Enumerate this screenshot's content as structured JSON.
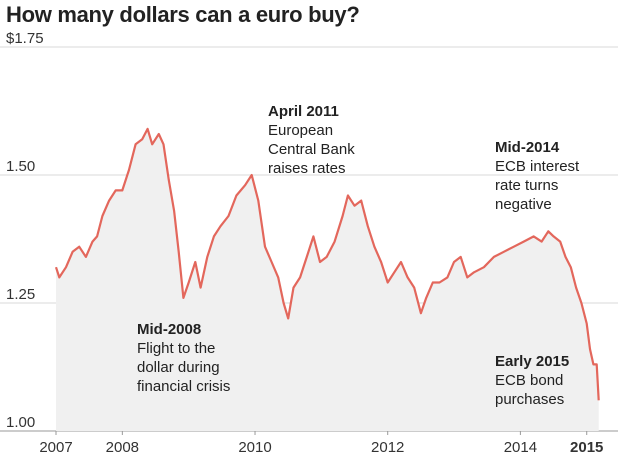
{
  "title": "How many dollars can a euro buy?",
  "chart_data": {
    "type": "area",
    "title": "How many dollars can a euro buy?",
    "xlabel": "",
    "ylabel": "",
    "ylim": [
      1.0,
      1.75
    ],
    "xlim": [
      "2007-01",
      "2015-03"
    ],
    "grid": true,
    "y_ticks": [
      "$1.75",
      "1.50",
      "1.25",
      "1.00"
    ],
    "y_tick_values": [
      1.75,
      1.5,
      1.25,
      1.0
    ],
    "x_ticks": [
      {
        "label": "2007",
        "value": 2007.0
      },
      {
        "label": "2008",
        "value": 2008.0
      },
      {
        "label": "2010",
        "value": 2010.0
      },
      {
        "label": "2012",
        "value": 2012.0
      },
      {
        "label": "2014",
        "value": 2014.0
      },
      {
        "label": "2015",
        "value": 2015.0,
        "bold": true
      }
    ],
    "colors": {
      "line": "#e3675c",
      "area": "#f0f0f0",
      "grid": "#cccccc"
    },
    "series": [
      {
        "x": [
          2007.0,
          2007.05,
          2007.15,
          2007.25,
          2007.35,
          2007.45,
          2007.55,
          2007.62,
          2007.7,
          2007.8,
          2007.9,
          2008.0,
          2008.1,
          2008.2,
          2008.3,
          2008.38,
          2008.45,
          2008.55,
          2008.62,
          2008.7,
          2008.78,
          2008.85,
          2008.92,
          2009.0,
          2009.1,
          2009.18,
          2009.28,
          2009.38,
          2009.48,
          2009.6,
          2009.72,
          2009.85,
          2009.95,
          2010.05,
          2010.15,
          2010.25,
          2010.35,
          2010.43,
          2010.5,
          2010.58,
          2010.68,
          2010.78,
          2010.88,
          2010.98,
          2011.08,
          2011.2,
          2011.32,
          2011.4,
          2011.5,
          2011.6,
          2011.7,
          2011.8,
          2011.9,
          2012.0,
          2012.1,
          2012.2,
          2012.3,
          2012.4,
          2012.5,
          2012.58,
          2012.68,
          2012.78,
          2012.9,
          2013.0,
          2013.1,
          2013.2,
          2013.3,
          2013.45,
          2013.6,
          2013.75,
          2013.9,
          2014.05,
          2014.2,
          2014.32,
          2014.42,
          2014.5,
          2014.6,
          2014.68,
          2014.76,
          2014.84,
          2014.92,
          2015.0,
          2015.05,
          2015.1,
          2015.15,
          2015.18
        ],
        "y": [
          1.32,
          1.3,
          1.32,
          1.35,
          1.36,
          1.34,
          1.37,
          1.38,
          1.42,
          1.45,
          1.47,
          1.47,
          1.51,
          1.56,
          1.57,
          1.59,
          1.56,
          1.58,
          1.56,
          1.49,
          1.43,
          1.35,
          1.26,
          1.29,
          1.33,
          1.28,
          1.34,
          1.38,
          1.4,
          1.42,
          1.46,
          1.48,
          1.5,
          1.45,
          1.36,
          1.33,
          1.3,
          1.25,
          1.22,
          1.28,
          1.3,
          1.34,
          1.38,
          1.33,
          1.34,
          1.37,
          1.42,
          1.46,
          1.44,
          1.45,
          1.4,
          1.36,
          1.33,
          1.29,
          1.31,
          1.33,
          1.3,
          1.28,
          1.23,
          1.26,
          1.29,
          1.29,
          1.3,
          1.33,
          1.34,
          1.3,
          1.31,
          1.32,
          1.34,
          1.35,
          1.36,
          1.37,
          1.38,
          1.37,
          1.39,
          1.38,
          1.37,
          1.34,
          1.32,
          1.28,
          1.25,
          1.21,
          1.16,
          1.13,
          1.13,
          1.06
        ]
      }
    ],
    "annotations": [
      {
        "head": "Mid-2008",
        "lines": [
          "Flight to the",
          "dollar during",
          "financial crisis"
        ]
      },
      {
        "head": "April 2011",
        "lines": [
          "European",
          "Central Bank",
          "raises rates"
        ]
      },
      {
        "head": "Mid-2014",
        "lines": [
          "ECB interest",
          "rate turns",
          "negative"
        ]
      },
      {
        "head": "Early 2015",
        "lines": [
          "ECB bond",
          "purchases"
        ]
      }
    ]
  }
}
